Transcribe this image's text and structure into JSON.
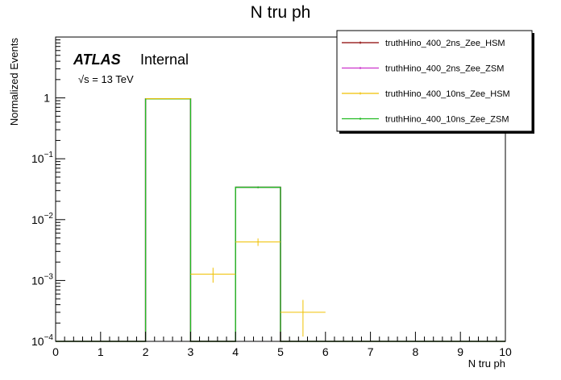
{
  "chart_data": {
    "type": "histogram",
    "title": "N tru ph",
    "xlabel": "N tru ph",
    "ylabel": "Normalized Events",
    "xlim": [
      0,
      10
    ],
    "ylim": [
      0.0001,
      10
    ],
    "yscale": "log",
    "grid": false,
    "legend_position": "top-right",
    "x_ticks": [
      "0",
      "1",
      "2",
      "3",
      "4",
      "5",
      "6",
      "7",
      "8",
      "9",
      "10"
    ],
    "y_ticks": [
      {
        "value": 0.0001,
        "base": "10",
        "exp": "−4"
      },
      {
        "value": 0.001,
        "base": "10",
        "exp": "−3"
      },
      {
        "value": 0.01,
        "base": "10",
        "exp": "−2"
      },
      {
        "value": 0.1,
        "base": "10",
        "exp": "−1"
      },
      {
        "value": 1,
        "base": "1",
        "exp": ""
      }
    ],
    "atlas_label": "ATLAS",
    "atlas_status": "Internal",
    "energy_label": "√s = 13 TeV",
    "bin_edges": [
      0,
      1,
      2,
      3,
      4,
      5,
      6,
      7,
      8,
      9,
      10
    ],
    "series": [
      {
        "name": "truthHino_400_2ns_Zee_HSM",
        "color": "#8b0000",
        "style": "hist",
        "values": [
          0,
          0,
          0.965,
          0,
          0.034,
          0,
          0,
          0,
          0,
          0
        ],
        "errors": [
          0,
          0,
          0.006,
          0,
          0.0012,
          0,
          0,
          0,
          0,
          0
        ]
      },
      {
        "name": "truthHino_400_2ns_Zee_ZSM",
        "color": "#cc33cc",
        "style": "hist",
        "values": [
          0,
          0,
          0.965,
          0,
          0.034,
          0,
          0,
          0,
          0,
          0
        ],
        "errors": [
          0,
          0,
          0.006,
          0,
          0.0012,
          0,
          0,
          0,
          0,
          0
        ]
      },
      {
        "name": "truthHino_400_10ns_Zee_HSM",
        "color": "#f0c000",
        "style": "errorbar",
        "values": [
          0,
          0,
          0.97,
          0.00127,
          0.0043,
          0.0003,
          0,
          0,
          0,
          0
        ],
        "errors": [
          0,
          0,
          0.006,
          0.00035,
          0.0006,
          0.00018,
          0,
          0,
          0,
          0
        ]
      },
      {
        "name": "truthHino_400_10ns_Zee_ZSM",
        "color": "#22bb22",
        "style": "hist",
        "values": [
          0,
          0,
          0.965,
          0,
          0.034,
          0,
          0,
          0,
          0,
          0
        ],
        "errors": [
          0,
          0,
          0.006,
          0,
          0.0012,
          0,
          0,
          0,
          0,
          0
        ]
      }
    ]
  }
}
